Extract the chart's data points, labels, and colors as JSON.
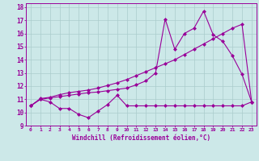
{
  "xlabel": "Windchill (Refroidissement éolien,°C)",
  "bg_color": "#cce8e8",
  "line_color": "#990099",
  "grid_color": "#aacccc",
  "xlim": [
    -0.5,
    23.5
  ],
  "ylim": [
    9.0,
    18.3
  ],
  "yticks": [
    9,
    10,
    11,
    12,
    13,
    14,
    15,
    16,
    17,
    18
  ],
  "xticks": [
    0,
    1,
    2,
    3,
    4,
    5,
    6,
    7,
    8,
    9,
    10,
    11,
    12,
    13,
    14,
    15,
    16,
    17,
    18,
    19,
    20,
    21,
    22,
    23
  ],
  "line1_x": [
    0,
    1,
    2,
    3,
    4,
    5,
    6,
    7,
    8,
    9,
    10,
    11,
    12,
    13,
    14,
    15,
    16,
    17,
    18,
    19,
    20,
    21,
    22,
    23
  ],
  "line1_y": [
    10.5,
    11.0,
    10.8,
    10.3,
    10.3,
    9.85,
    9.6,
    10.1,
    10.6,
    11.3,
    10.5,
    10.5,
    10.5,
    10.5,
    10.5,
    10.5,
    10.5,
    10.5,
    10.5,
    10.5,
    10.5,
    10.5,
    10.5,
    10.8
  ],
  "line2_x": [
    0,
    1,
    2,
    3,
    4,
    5,
    6,
    7,
    8,
    9,
    10,
    11,
    12,
    13,
    14,
    15,
    16,
    17,
    18,
    19,
    20,
    21,
    22,
    23
  ],
  "line2_y": [
    10.5,
    11.0,
    11.1,
    11.2,
    11.3,
    11.4,
    11.5,
    11.55,
    11.65,
    11.75,
    11.85,
    12.1,
    12.4,
    13.0,
    17.1,
    14.8,
    16.0,
    16.4,
    17.7,
    15.9,
    15.4,
    14.3,
    12.9,
    10.8
  ],
  "line3_x": [
    0,
    1,
    2,
    3,
    4,
    5,
    6,
    7,
    8,
    9,
    10,
    11,
    12,
    13,
    14,
    15,
    16,
    17,
    18,
    19,
    20,
    21,
    22,
    23
  ],
  "line3_y": [
    10.5,
    11.05,
    11.15,
    11.35,
    11.5,
    11.6,
    11.7,
    11.85,
    12.05,
    12.25,
    12.5,
    12.8,
    13.1,
    13.4,
    13.7,
    14.0,
    14.4,
    14.8,
    15.2,
    15.6,
    16.0,
    16.4,
    16.7,
    10.8
  ]
}
